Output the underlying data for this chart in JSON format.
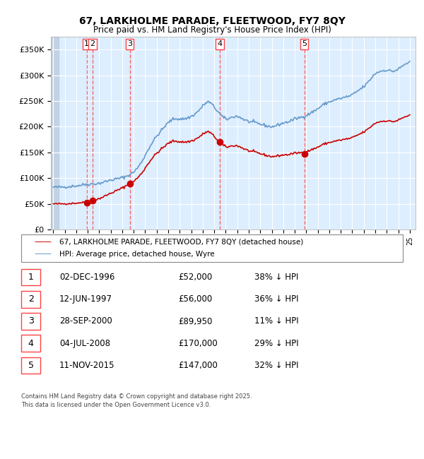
{
  "title": "67, LARKHOLME PARADE, FLEETWOOD, FY7 8QY",
  "subtitle": "Price paid vs. HM Land Registry's House Price Index (HPI)",
  "legend_red": "67, LARKHOLME PARADE, FLEETWOOD, FY7 8QY (detached house)",
  "legend_blue": "HPI: Average price, detached house, Wyre",
  "footer1": "Contains HM Land Registry data © Crown copyright and database right 2025.",
  "footer2": "This data is licensed under the Open Government Licence v3.0.",
  "transactions": [
    {
      "label": "1",
      "date": "1996-12-02",
      "price": 52000
    },
    {
      "label": "2",
      "date": "1997-06-12",
      "price": 56000
    },
    {
      "label": "3",
      "date": "2000-09-28",
      "price": 89950
    },
    {
      "label": "4",
      "date": "2008-07-04",
      "price": 170000
    },
    {
      "label": "5",
      "date": "2015-11-11",
      "price": 147000
    }
  ],
  "table_rows": [
    {
      "num": "1",
      "date": "02-DEC-1996",
      "price": "£52,000",
      "note": "38% ↓ HPI"
    },
    {
      "num": "2",
      "date": "12-JUN-1997",
      "price": "£56,000",
      "note": "36% ↓ HPI"
    },
    {
      "num": "3",
      "date": "28-SEP-2000",
      "price": "£89,950",
      "note": "11% ↓ HPI"
    },
    {
      "num": "4",
      "date": "04-JUL-2008",
      "price": "£170,000",
      "note": "29% ↓ HPI"
    },
    {
      "num": "5",
      "date": "11-NOV-2015",
      "price": "£147,000",
      "note": "32% ↓ HPI"
    }
  ],
  "ylim": [
    0,
    375000
  ],
  "yticks": [
    0,
    50000,
    100000,
    150000,
    200000,
    250000,
    300000,
    350000
  ],
  "ytick_labels": [
    "£0",
    "£50K",
    "£100K",
    "£150K",
    "£200K",
    "£250K",
    "£300K",
    "£350K"
  ],
  "color_red": "#cc0000",
  "color_blue": "#6699cc",
  "color_bg_chart": "#ddeeff",
  "color_bg_hatch": "#c8d8e8",
  "color_grid": "#ffffff",
  "color_dashed_red": "#ff4444"
}
